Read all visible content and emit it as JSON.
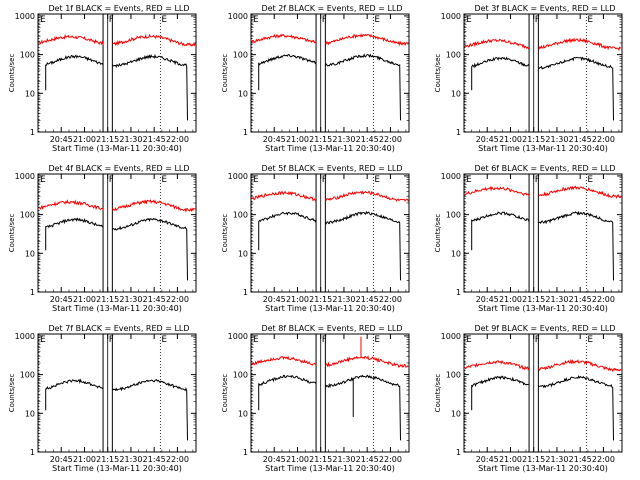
{
  "common": {
    "ylabel": "Counts/sec",
    "xlabel": "Start Time (13-Mar-11 20:30:40)",
    "x_ticks": [
      "20:45",
      "21:00",
      "21:15",
      "21:30",
      "21:45",
      "22:00"
    ],
    "y_ticks": [
      "1",
      "10",
      "100",
      "1000"
    ],
    "xlim_minutes": [
      0,
      102
    ],
    "ylim_log10": [
      0,
      3.05
    ],
    "markers": [
      {
        "label": "E",
        "minute": 0,
        "style": "dotted"
      },
      {
        "label": "F",
        "minute": 45,
        "style": "solid"
      },
      {
        "label": "E",
        "minute": 79,
        "style": "dotted"
      }
    ],
    "band_minutes": [
      42,
      48
    ],
    "colors": {
      "events": "#000000",
      "lld": "#ff0000"
    }
  },
  "chart_data": [
    {
      "type": "line",
      "title": "Det 1f BLACK = Events, RED = LLD",
      "events_base": 90,
      "lld": 300,
      "ev_start": 5,
      "ev_end": 96,
      "spikes": []
    },
    {
      "type": "line",
      "title": "Det 2f BLACK = Events, RED = LLD",
      "events_base": 95,
      "lld": 320,
      "ev_start": 5,
      "ev_end": 96,
      "spikes": []
    },
    {
      "type": "line",
      "title": "Det 3f BLACK = Events, RED = LLD",
      "events_base": 80,
      "lld": 240,
      "ev_start": 5,
      "ev_end": 96,
      "spikes": []
    },
    {
      "type": "line",
      "title": "Det 4f BLACK = Events, RED = LLD",
      "events_base": 75,
      "lld": 220,
      "ev_start": 5,
      "ev_end": 96,
      "spikes": []
    },
    {
      "type": "line",
      "title": "Det 5f BLACK = Events, RED = LLD",
      "events_base": 110,
      "lld": 380,
      "ev_start": 5,
      "ev_end": 96,
      "spikes": []
    },
    {
      "type": "line",
      "title": "Det 6f BLACK = Events, RED = LLD",
      "events_base": 110,
      "lld": 500,
      "ev_start": 5,
      "ev_end": 96,
      "spikes": []
    },
    {
      "type": "line",
      "title": "Det 7f BLACK = Events, RED = LLD",
      "events_base": 70,
      "lld": null,
      "ev_start": 5,
      "ev_end": 96,
      "spikes": []
    },
    {
      "type": "line",
      "title": "Det 8f BLACK = Events, RED = LLD",
      "events_base": 90,
      "lld": 280,
      "ev_start": 5,
      "ev_end": 96,
      "spikes": [
        {
          "minute": 71,
          "value": 950
        },
        {
          "minute": 66,
          "value": 8
        }
      ]
    },
    {
      "type": "line",
      "title": "Det 9f BLACK = Events, RED = LLD",
      "events_base": 85,
      "lld": 220,
      "ev_start": 5,
      "ev_end": 96,
      "spikes": []
    }
  ]
}
